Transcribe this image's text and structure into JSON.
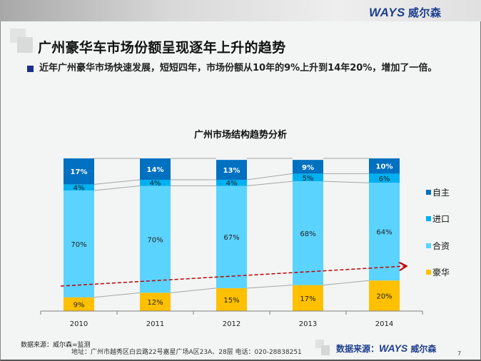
{
  "header": {
    "logo_latin": "WAYS",
    "logo_cn": "威尔森"
  },
  "slide": {
    "title": "广州豪华车市场份额呈现逐年上升的趋势",
    "bullet_text": "近年广州豪华市场快速发展，短短四年，市场份额从10年的9%上升到14年20%，增加了一倍。"
  },
  "chart_data": {
    "type": "bar",
    "stacked": true,
    "percent_stacked": true,
    "title": "广州市场结构趋势分析",
    "categories": [
      "2010",
      "2011",
      "2012",
      "2013",
      "2014"
    ],
    "series": [
      {
        "name": "豪华",
        "color": "#ffc000",
        "values": [
          9,
          12,
          15,
          17,
          20
        ]
      },
      {
        "name": "合资",
        "color": "#5bd3ff",
        "values": [
          70,
          70,
          67,
          68,
          64
        ]
      },
      {
        "name": "进口",
        "color": "#00b0f0",
        "values": [
          4,
          4,
          4,
          5,
          6
        ]
      },
      {
        "name": "自主",
        "color": "#0070c0",
        "values": [
          17,
          14,
          13,
          9,
          10
        ]
      }
    ],
    "legend_order": [
      "自主",
      "进口",
      "合资",
      "豪华"
    ],
    "legend_position": "right",
    "ylim": [
      0,
      100
    ],
    "xlabel": "",
    "ylabel": "",
    "grid": false,
    "annotations": [
      {
        "type": "dashed-trend-arrow",
        "color": "#c00000",
        "direction": "upward"
      }
    ]
  },
  "footer": {
    "source_note": "数据来源：威尔森=监测",
    "address": "地址：广州市越秀区白云路22号嘉星广场A区23A、28层   电话：020-28838251",
    "source_label": "数据来源：",
    "source_logo_latin": "WAYS",
    "source_logo_cn": "威尔森",
    "page_number": "7"
  }
}
